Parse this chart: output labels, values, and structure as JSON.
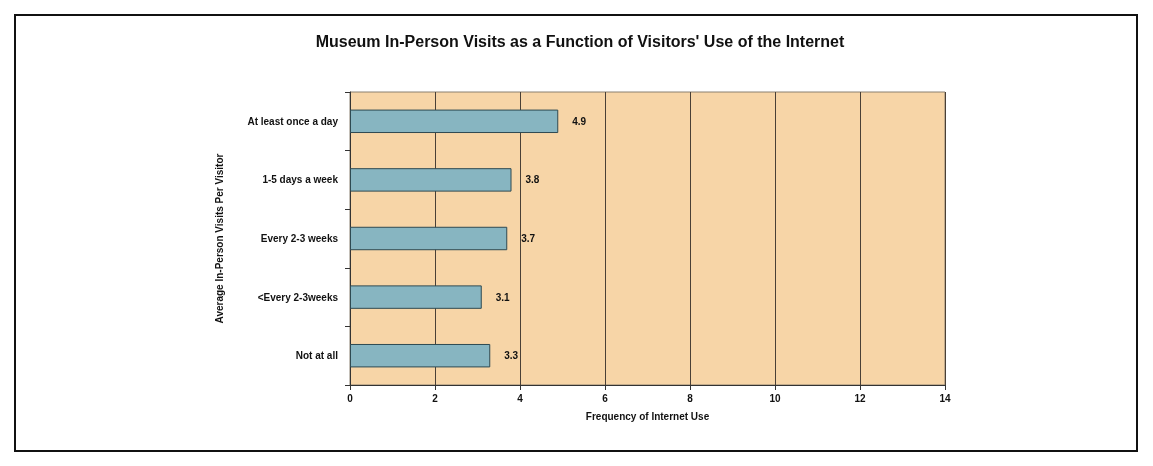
{
  "chart_data": {
    "type": "bar",
    "orientation": "horizontal",
    "title": "Museum In-Person Visits as a Function of Visitors' Use of the Internet",
    "xlabel": "Frequency of Internet Use",
    "ylabel": "Average In-Person Visits Per Visitor",
    "categories": [
      "At least once a day",
      "1-5 days a week",
      "Every 2-3 weeks",
      "<Every 2-3weeks",
      "Not at all"
    ],
    "values": [
      4.9,
      3.8,
      3.7,
      3.1,
      3.3
    ],
    "color": "#87b5c1",
    "xlim": [
      0,
      14
    ],
    "xticks": [
      0,
      2,
      4,
      6,
      8,
      10,
      12,
      14
    ],
    "grid": "x",
    "data_labels": true
  }
}
